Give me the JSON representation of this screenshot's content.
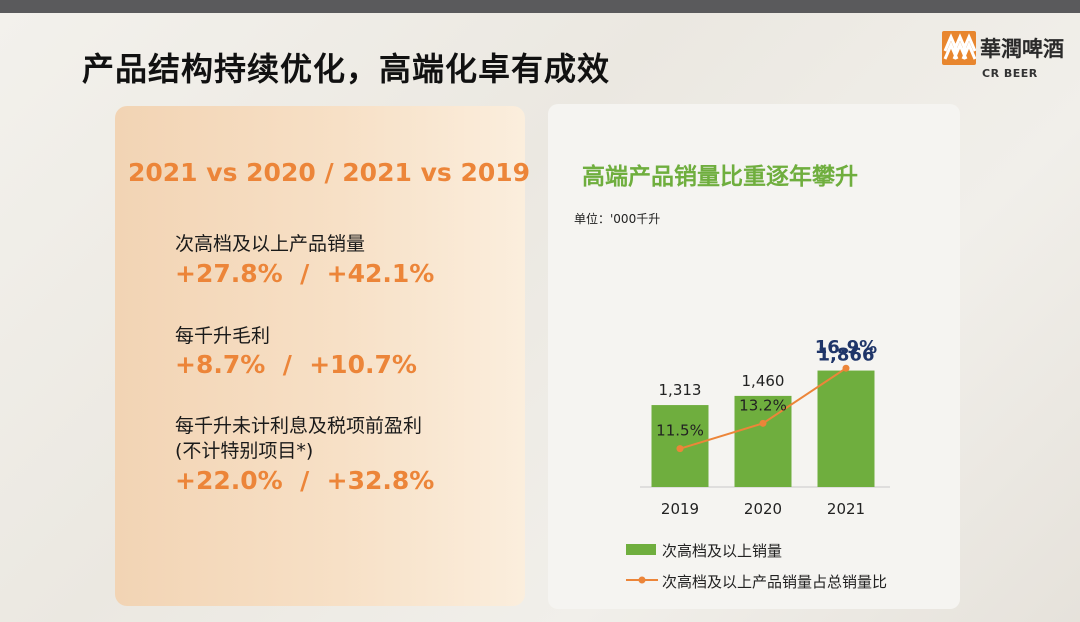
{
  "slide": {
    "title": "产品结构持续优化，高端化卓有成效",
    "logo": {
      "text": "華潤啤酒",
      "subtext": "CR BEER"
    }
  },
  "left_panel": {
    "heading": "2021 vs 2020 / 2021 vs 2019",
    "metrics": [
      {
        "label": "次高档及以上产品销量",
        "value": "+27.8%  /  +42.1%"
      },
      {
        "label": "每千升毛利",
        "value": "+8.7%  /  +10.7%"
      },
      {
        "label": "每千升未计利息及税项前盈利",
        "label2": "(不计特别项目*)",
        "value": "+22.0%  /  +32.8%"
      }
    ]
  },
  "right_panel": {
    "title": "高端产品销量比重逐年攀升",
    "unit": "单位：'000千升",
    "legend": {
      "bar": "次高档及以上销量",
      "line": "次高档及以上产品销量占总销量比"
    }
  },
  "chart_data": {
    "type": "bar",
    "categories": [
      "2019",
      "2020",
      "2021"
    ],
    "series": [
      {
        "name": "次高档及以上销量",
        "type": "bar",
        "values": [
          1313,
          1460,
          1866
        ],
        "labels": [
          "1,313",
          "1,460",
          "1,866"
        ],
        "color": "#6fae3e"
      },
      {
        "name": "次高档及以上产品销量占总销量比",
        "type": "line",
        "values": [
          11.5,
          13.2,
          16.9
        ],
        "labels": [
          "11.5%",
          "13.2%",
          "16.9%"
        ],
        "color": "#ec8539"
      }
    ],
    "highlight_color": "#1f3569",
    "ylim_bar": [
      0,
      2500
    ],
    "ylim_line": [
      0,
      20
    ]
  },
  "colors": {
    "accent_orange": "#ec8539",
    "accent_green": "#6fae3e",
    "highlight_navy": "#1f3569"
  }
}
